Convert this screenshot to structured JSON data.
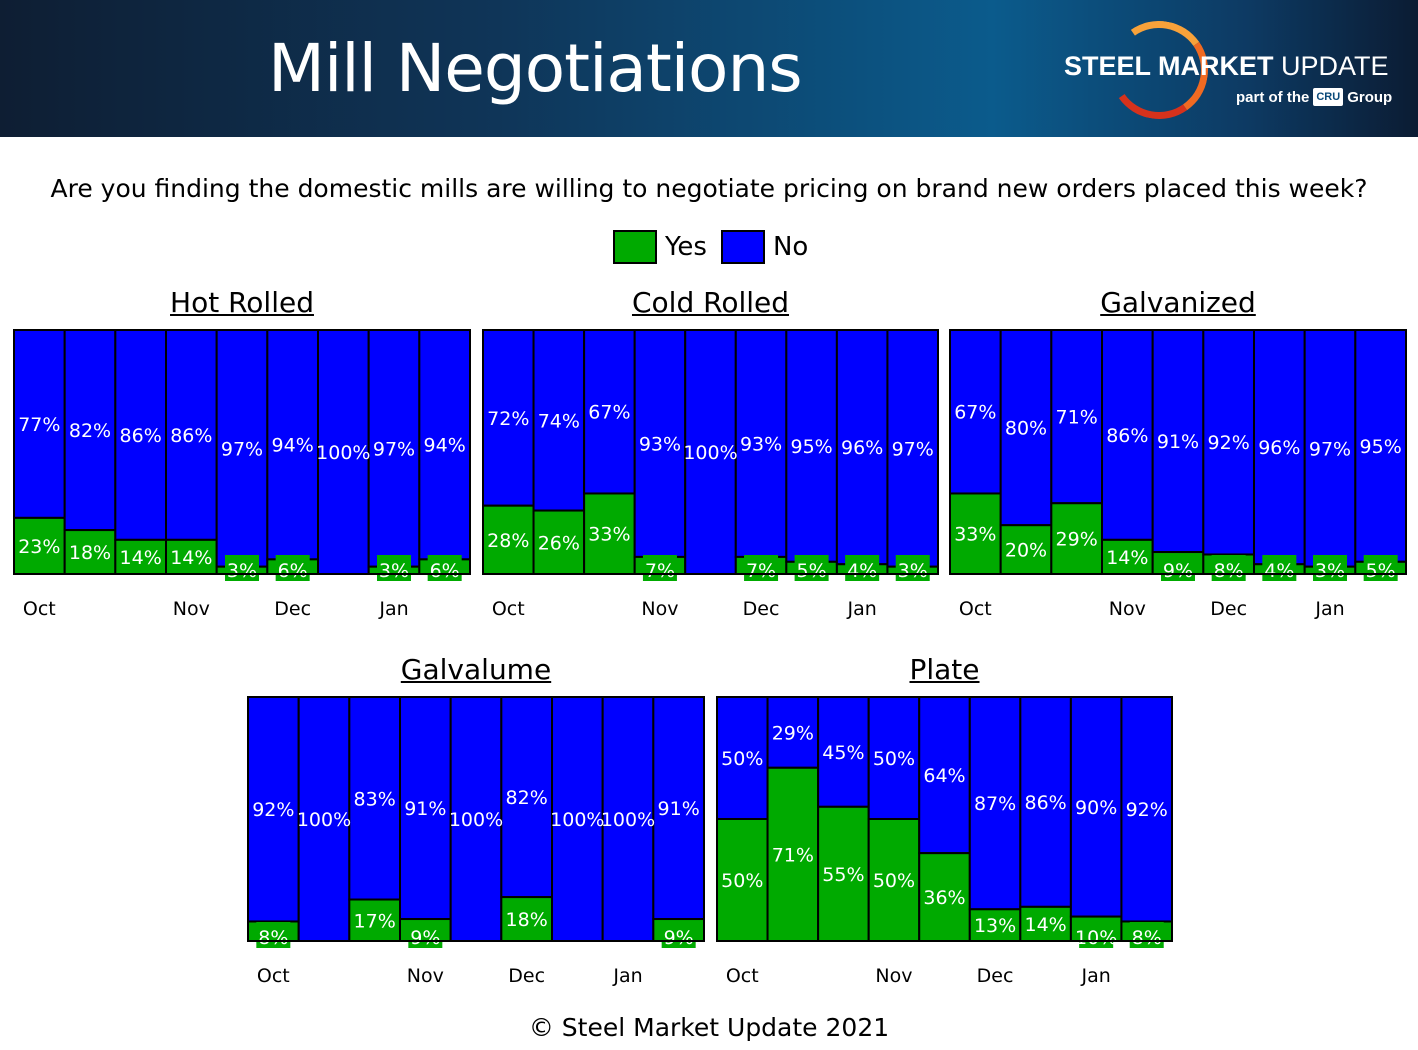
{
  "header": {
    "title": "Mill Negotiations",
    "logo_main_bold": "STEEL M",
    "logo_main_bold2": "ARKET",
    "logo_main_light": " UPDATE",
    "logo_sub_pre": "part of the",
    "logo_cru": "CRU",
    "logo_sub_post": "Group"
  },
  "question": "Are you finding the domestic mills are willing to negotiate pricing on brand new orders placed this week?",
  "legend": {
    "yes": "Yes",
    "no": "No",
    "yes_color": "#00AA00",
    "no_color": "#0000FF"
  },
  "footer": "© Steel Market Update 2021",
  "chart_data": [
    {
      "type": "bar",
      "stacked": true,
      "title": "Hot Rolled",
      "month_labels": [
        "Oct",
        "",
        "",
        "Nov",
        "",
        "Dec",
        "",
        "Jan",
        ""
      ],
      "series": [
        {
          "name": "Yes",
          "values": [
            23,
            18,
            14,
            14,
            3,
            6,
            0,
            3,
            6
          ]
        },
        {
          "name": "No",
          "values": [
            77,
            82,
            86,
            86,
            97,
            94,
            100,
            97,
            94
          ]
        }
      ],
      "ylim": [
        0,
        100
      ]
    },
    {
      "type": "bar",
      "stacked": true,
      "title": "Cold Rolled",
      "month_labels": [
        "Oct",
        "",
        "",
        "Nov",
        "",
        "Dec",
        "",
        "Jan",
        ""
      ],
      "series": [
        {
          "name": "Yes",
          "values": [
            28,
            26,
            33,
            7,
            0,
            7,
            5,
            4,
            3
          ]
        },
        {
          "name": "No",
          "values": [
            72,
            74,
            67,
            93,
            100,
            93,
            95,
            96,
            97
          ]
        }
      ],
      "ylim": [
        0,
        100
      ]
    },
    {
      "type": "bar",
      "stacked": true,
      "title": "Galvanized",
      "month_labels": [
        "Oct",
        "",
        "",
        "Nov",
        "",
        "Dec",
        "",
        "Jan",
        ""
      ],
      "series": [
        {
          "name": "Yes",
          "values": [
            33,
            20,
            29,
            14,
            9,
            8,
            4,
            3,
            5
          ]
        },
        {
          "name": "No",
          "values": [
            67,
            80,
            71,
            86,
            91,
            92,
            96,
            97,
            95
          ]
        }
      ],
      "ylim": [
        0,
        100
      ]
    },
    {
      "type": "bar",
      "stacked": true,
      "title": "Galvalume",
      "month_labels": [
        "Oct",
        "",
        "",
        "Nov",
        "",
        "Dec",
        "",
        "Jan",
        ""
      ],
      "series": [
        {
          "name": "Yes",
          "values": [
            8,
            0,
            17,
            9,
            0,
            18,
            0,
            0,
            9
          ]
        },
        {
          "name": "No",
          "values": [
            92,
            100,
            83,
            91,
            100,
            82,
            100,
            100,
            91
          ]
        }
      ],
      "ylim": [
        0,
        100
      ]
    },
    {
      "type": "bar",
      "stacked": true,
      "title": "Plate",
      "month_labels": [
        "Oct",
        "",
        "",
        "Nov",
        "",
        "Dec",
        "",
        "Jan",
        ""
      ],
      "series": [
        {
          "name": "Yes",
          "values": [
            50,
            71,
            55,
            50,
            36,
            13,
            14,
            10,
            8
          ]
        },
        {
          "name": "No",
          "values": [
            50,
            29,
            45,
            50,
            64,
            87,
            86,
            90,
            92
          ]
        }
      ],
      "ylim": [
        0,
        100
      ]
    }
  ]
}
